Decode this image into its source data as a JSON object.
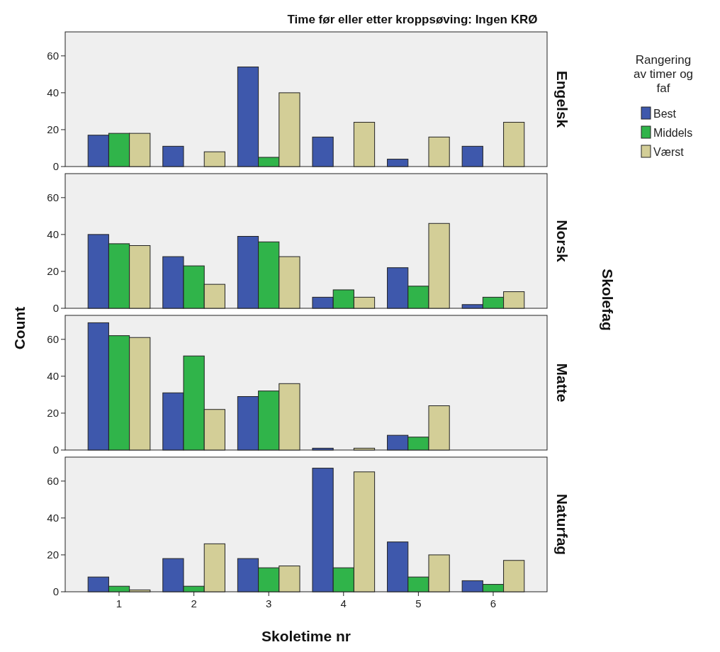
{
  "chart_data": [
    {
      "type": "bar",
      "title": "Time før eller etter kroppsøving: Ingen KRØ",
      "subtitle": "Engelsk",
      "legend_title": "Rangering av timer og faf",
      "legend": "right",
      "tick_labels": "y",
      "categories": [
        "1",
        "2",
        "3",
        "4",
        "5",
        "6"
      ],
      "ylim": [
        0,
        73
      ],
      "yticks": [
        0,
        20,
        40,
        60
      ],
      "series": [
        {
          "name": "Best",
          "color": "#3e58ac",
          "values": [
            17,
            11,
            54,
            16,
            4,
            11
          ]
        },
        {
          "name": "Middels",
          "color": "#30b44a",
          "values": [
            18,
            null,
            5,
            null,
            null,
            null
          ]
        },
        {
          "name": "Værst",
          "color": "#d3ce97",
          "values": [
            18,
            8,
            40,
            24,
            16,
            24
          ]
        }
      ]
    },
    {
      "type": "bar",
      "subtitle": "Norsk",
      "y2label": "Skolefag",
      "tick_labels": "y",
      "categories": [
        "1",
        "2",
        "3",
        "4",
        "5",
        "6"
      ],
      "ylim": [
        0,
        73
      ],
      "yticks": [
        0,
        20,
        40,
        60
      ],
      "series": [
        {
          "color": "#3e58ac",
          "values": [
            40,
            28,
            39,
            6,
            22,
            2
          ]
        },
        {
          "color": "#30b44a",
          "values": [
            35,
            23,
            36,
            10,
            12,
            6
          ]
        },
        {
          "color": "#d3ce97",
          "values": [
            34,
            13,
            28,
            6,
            46,
            9
          ]
        }
      ]
    },
    {
      "type": "bar",
      "subtitle": "Matte",
      "ylabel": "Count",
      "tick_labels": "y",
      "categories": [
        "1",
        "2",
        "3",
        "4",
        "5",
        "6"
      ],
      "ylim": [
        0,
        73
      ],
      "yticks": [
        0,
        20,
        40,
        60
      ],
      "series": [
        {
          "color": "#3e58ac",
          "values": [
            69,
            31,
            29,
            1,
            8,
            null
          ]
        },
        {
          "color": "#30b44a",
          "values": [
            62,
            51,
            32,
            null,
            7,
            null
          ]
        },
        {
          "color": "#d3ce97",
          "values": [
            61,
            22,
            36,
            1,
            24,
            null
          ]
        }
      ]
    },
    {
      "type": "bar",
      "subtitle": "Naturfag",
      "xlabel": "Skoletime nr",
      "categories": [
        "1",
        "2",
        "3",
        "4",
        "5",
        "6"
      ],
      "ylim": [
        0,
        73
      ],
      "yticks": [
        0,
        20,
        40,
        60
      ],
      "series": [
        {
          "color": "#3e58ac",
          "values": [
            8,
            18,
            18,
            67,
            27,
            6
          ]
        },
        {
          "color": "#30b44a",
          "values": [
            3,
            3,
            13,
            13,
            8,
            4
          ]
        },
        {
          "color": "#d3ce97",
          "values": [
            1,
            26,
            14,
            65,
            20,
            17
          ]
        }
      ]
    }
  ]
}
